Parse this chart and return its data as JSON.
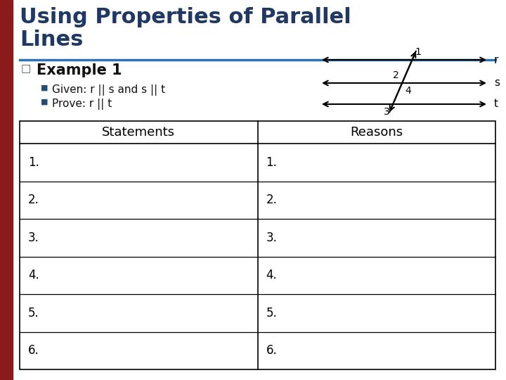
{
  "title_line1": "Using Properties of Parallel",
  "title_line2": "Lines",
  "title_color": "#1F3864",
  "background_color": "#FFFFFF",
  "left_bar_color": "#8B1A1A",
  "header_line_color": "#2E74B5",
  "example_label": "Example 1",
  "bullet1": "Given: r || s and s || t",
  "bullet2": "Prove: r || t",
  "table_headers": [
    "Statements",
    "Reasons"
  ],
  "table_rows": [
    "1.",
    "2.",
    "3.",
    "4.",
    "5.",
    "6."
  ],
  "line_r_label": "r",
  "line_s_label": "s",
  "line_t_label": "t",
  "angle_labels": [
    "1",
    "2",
    "4",
    "3"
  ]
}
